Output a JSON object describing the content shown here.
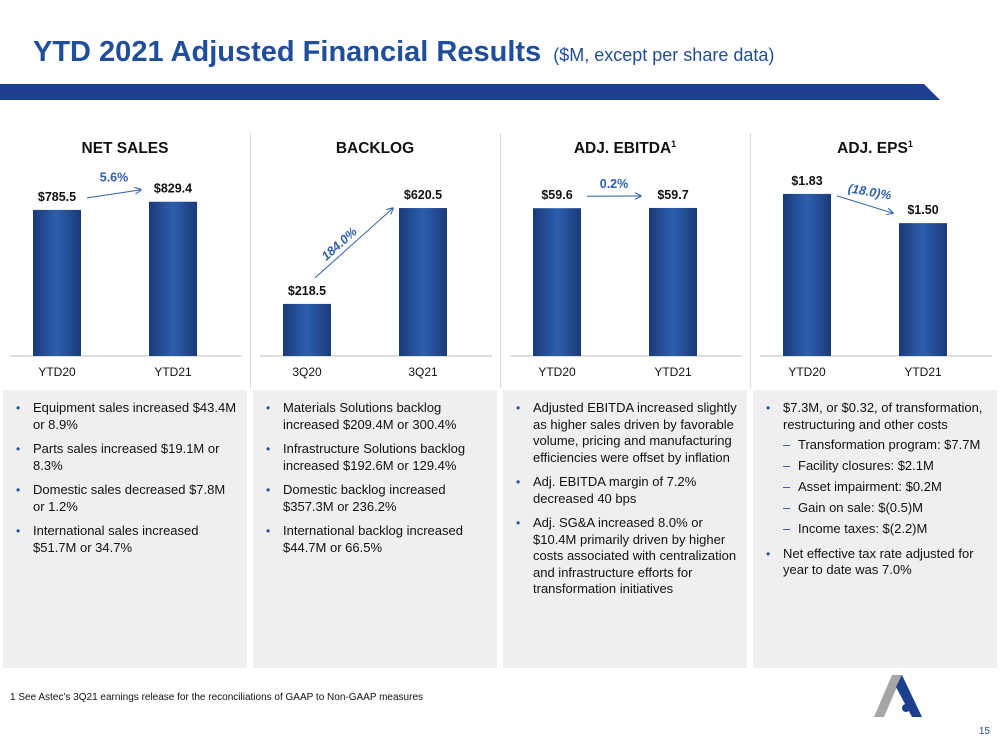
{
  "header": {
    "title": "YTD 2021 Adjusted Financial Results",
    "subtitle": "($M, except per share data)"
  },
  "chart_data": [
    {
      "type": "bar",
      "title": "NET SALES",
      "title_sup": "",
      "categories": [
        "YTD20",
        "YTD21"
      ],
      "values": [
        785.5,
        829.4
      ],
      "value_labels": [
        "$785.5",
        "$829.4"
      ],
      "change_label": "5.6%",
      "ylim": [
        0,
        1000
      ]
    },
    {
      "type": "bar",
      "title": "BACKLOG",
      "title_sup": "",
      "categories": [
        "3Q20",
        "3Q21"
      ],
      "values": [
        218.5,
        620.5
      ],
      "value_labels": [
        "$218.5",
        "$620.5"
      ],
      "change_label": "184.0%",
      "ylim": [
        0,
        780
      ]
    },
    {
      "type": "bar",
      "title": "ADJ. EBITDA",
      "title_sup": "1",
      "categories": [
        "YTD20",
        "YTD21"
      ],
      "values": [
        59.6,
        59.7
      ],
      "value_labels": [
        "$59.6",
        "$59.7"
      ],
      "change_label": "0.2%",
      "ylim": [
        0,
        75
      ]
    },
    {
      "type": "bar",
      "title": "ADJ. EPS",
      "title_sup": "1",
      "categories": [
        "YTD20",
        "YTD21"
      ],
      "values": [
        1.83,
        1.5
      ],
      "value_labels": [
        "$1.83",
        "$1.50"
      ],
      "change_label": "(18.0)%",
      "ylim": [
        0,
        2.1
      ]
    }
  ],
  "panels": [
    {
      "bullets": [
        {
          "text": "Equipment sales increased $43.4M or 8.9%"
        },
        {
          "text": "Parts sales increased $19.1M or 8.3%"
        },
        {
          "text": "Domestic sales decreased $7.8M or 1.2%"
        },
        {
          "text": "International sales increased $51.7M or 34.7%"
        }
      ]
    },
    {
      "bullets": [
        {
          "text": "Materials Solutions backlog increased $209.4M or 300.4%"
        },
        {
          "text": "Infrastructure Solutions backlog increased $192.6M or 129.4%"
        },
        {
          "text": "Domestic backlog increased $357.3M or 236.2%"
        },
        {
          "text": "International backlog increased $44.7M or 66.5%"
        }
      ]
    },
    {
      "bullets": [
        {
          "text": "Adjusted EBITDA increased slightly as higher sales driven by favorable volume, pricing and manufacturing efficiencies were offset by inflation"
        },
        {
          "text": "Adj. EBITDA margin of 7.2% decreased 40 bps"
        },
        {
          "text": "Adj. SG&A increased 8.0% or $10.4M primarily driven by higher costs associated with centralization and infrastructure efforts for transformation initiatives"
        }
      ]
    },
    {
      "bullets": [
        {
          "text": "$7.3M, or $0.32, of transformation, restructuring and other costs",
          "subs": [
            "Transformation program: $7.7M",
            "Facility closures: $2.1M",
            "Asset impairment: $0.2M",
            "Gain on sale: $(0.5)M",
            "Income taxes: $(2.2)M"
          ]
        },
        {
          "text": "Net effective tax rate adjusted for year to date was 7.0%"
        }
      ]
    }
  ],
  "footer": {
    "footnote": "1 See Astec’s 3Q21 earnings release for the reconciliations of GAAP to Non-GAAP measures",
    "page_number": "15"
  },
  "colors": {
    "title": "#1f4e9c",
    "bar_top": "#2d5fae",
    "bar_bottom": "#1a3a7a",
    "arrow": "#2d5fae",
    "panel_bg": "#efefef"
  }
}
